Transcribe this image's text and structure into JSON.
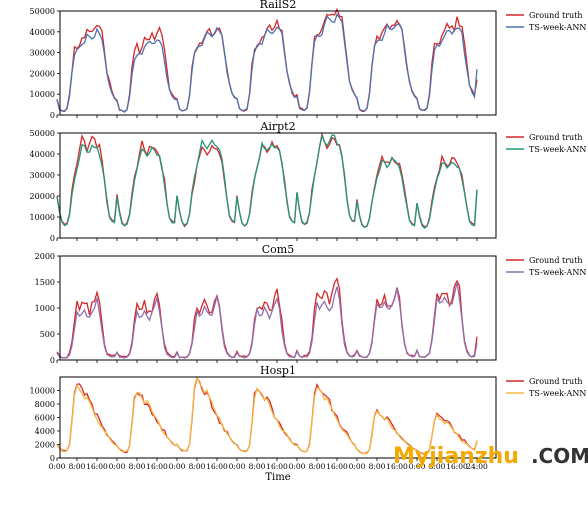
{
  "xlabel": "Time",
  "x_tick_labels": [
    "0:00",
    "8:00",
    "16:00",
    "0:00",
    "8:00",
    "16:00",
    "0:00",
    "8:00",
    "16:00",
    "0:00",
    "8:00",
    "16:00",
    "0:00",
    "8:00",
    "16:00",
    "0:00",
    "8:00",
    "16:00",
    "0:00",
    "8:00",
    "16:00",
    "24:00"
  ],
  "watermark": {
    "main": "Myjianzhu",
    "suffix": ".COM"
  },
  "chart_data": [
    {
      "type": "line",
      "title": "RailS2",
      "ylim": [
        0,
        50000
      ],
      "yticks": [
        0,
        10000,
        20000,
        30000,
        40000,
        50000
      ],
      "legend_position": "outside-right",
      "series": [
        {
          "name": "Ground truth",
          "color": "#d62728"
        },
        {
          "name": "TS-week-ANN",
          "color": "#4c72b0"
        }
      ],
      "daily_profile": {
        "hours": [
          0,
          1,
          2,
          3,
          4,
          5,
          6,
          7,
          8,
          9,
          10,
          11,
          12,
          13,
          14,
          15,
          16,
          17,
          18,
          19,
          20,
          21,
          22,
          23,
          24
        ],
        "fraction": [
          0.18,
          0.07,
          0.05,
          0.05,
          0.07,
          0.22,
          0.52,
          0.72,
          0.77,
          0.79,
          0.81,
          0.87,
          0.95,
          0.93,
          0.91,
          0.93,
          0.99,
          0.97,
          0.9,
          0.7,
          0.5,
          0.35,
          0.25,
          0.2,
          0.18
        ]
      },
      "day_peaks_truth": [
        44000,
        41000,
        43000,
        44500,
        51000,
        46500,
        46000
      ],
      "day_peaks_pred": [
        41000,
        37500,
        42000,
        43000,
        49000,
        45000,
        43000
      ],
      "day_noise_truth": [
        2500,
        3000,
        1500,
        2000,
        2500,
        2500,
        2500
      ],
      "day_noise_pred": [
        1000,
        1200,
        800,
        1000,
        1200,
        1000,
        1000
      ],
      "end_value_truth": 17000,
      "end_value_pred": 22000
    },
    {
      "type": "line",
      "title": "Airpt2",
      "ylim": [
        0,
        50000
      ],
      "yticks": [
        0,
        10000,
        20000,
        30000,
        40000,
        50000
      ],
      "legend_position": "outside-right",
      "series": [
        {
          "name": "Ground truth",
          "color": "#d62728"
        },
        {
          "name": "TS-week-ANN",
          "color": "#22967a"
        }
      ],
      "daily_profile": {
        "hours": [
          0,
          1,
          2,
          3,
          4,
          5,
          6,
          7,
          8,
          9,
          10,
          11,
          12,
          13,
          14,
          15,
          16,
          17,
          18,
          19,
          20,
          21,
          22,
          23,
          24
        ],
        "fraction": [
          0.44,
          0.27,
          0.16,
          0.13,
          0.15,
          0.24,
          0.44,
          0.62,
          0.74,
          0.85,
          0.98,
          0.94,
          0.9,
          0.92,
          0.99,
          0.95,
          0.92,
          0.88,
          0.76,
          0.58,
          0.38,
          0.22,
          0.17,
          0.16,
          0.15
        ]
      },
      "day_peaks_truth": [
        48000,
        45500,
        46000,
        47000,
        49000,
        39000,
        39000
      ],
      "day_peaks_pred": [
        46000,
        44000,
        48000,
        46000,
        50000,
        38000,
        37000
      ],
      "day_noise_truth": [
        2500,
        2000,
        2000,
        2000,
        2000,
        1500,
        1500
      ],
      "day_noise_pred": [
        1500,
        1000,
        1200,
        1000,
        1500,
        1000,
        1000
      ],
      "end_value_truth": 23000,
      "end_value_pred": 23000
    },
    {
      "type": "line",
      "title": "Com5",
      "ylim": [
        0,
        2000
      ],
      "yticks": [
        0,
        500,
        1000,
        1500,
        2000
      ],
      "legend_position": "outside-right",
      "series": [
        {
          "name": "Ground truth",
          "color": "#d62728"
        },
        {
          "name": "TS-week-ANN",
          "color": "#8e6fb0"
        }
      ],
      "daily_profile": {
        "hours": [
          0,
          1,
          2,
          3,
          4,
          5,
          6,
          7,
          8,
          9,
          10,
          11,
          12,
          13,
          14,
          15,
          16,
          17,
          18,
          19,
          20,
          21,
          22,
          23,
          24
        ],
        "fraction": [
          0.12,
          0.05,
          0.04,
          0.04,
          0.05,
          0.09,
          0.25,
          0.55,
          0.78,
          0.72,
          0.76,
          0.84,
          0.74,
          0.7,
          0.76,
          0.88,
          1.0,
          0.82,
          0.5,
          0.22,
          0.1,
          0.06,
          0.05,
          0.05,
          0.05
        ]
      },
      "day_peaks_truth": [
        1380,
        1300,
        1330,
        1360,
        1650,
        1440,
        1620
      ],
      "day_peaks_pred": [
        1150,
        1150,
        1200,
        1200,
        1380,
        1350,
        1480
      ],
      "day_noise_truth": [
        100,
        100,
        100,
        100,
        100,
        80,
        100
      ],
      "day_noise_pred": [
        50,
        50,
        50,
        50,
        50,
        50,
        50
      ],
      "end_value_truth": 450,
      "end_value_pred": 330
    },
    {
      "type": "line",
      "title": "Hosp1",
      "ylim": [
        0,
        12000
      ],
      "yticks": [
        0,
        2000,
        4000,
        6000,
        8000,
        10000
      ],
      "legend_position": "outside-right",
      "series": [
        {
          "name": "Ground truth",
          "color": "#d62728"
        },
        {
          "name": "TS-week-ANN",
          "color": "#f5b942"
        }
      ],
      "daily_profile": {
        "hours": [
          0,
          1,
          2,
          3,
          4,
          5,
          6,
          7,
          8,
          9,
          10,
          11,
          12,
          13,
          14,
          15,
          16,
          17,
          18,
          19,
          20,
          21,
          22,
          23,
          24
        ],
        "fraction": [
          0.18,
          0.13,
          0.1,
          0.09,
          0.1,
          0.18,
          0.5,
          0.88,
          1.0,
          0.95,
          0.9,
          0.83,
          0.84,
          0.78,
          0.68,
          0.6,
          0.55,
          0.48,
          0.42,
          0.38,
          0.32,
          0.27,
          0.22,
          0.19,
          0.17
        ]
      },
      "day_peaks_truth": [
        11200,
        9800,
        11500,
        10500,
        10800,
        7000,
        6500
      ],
      "day_peaks_pred": [
        10800,
        10000,
        11800,
        10200,
        10500,
        6800,
        6200
      ],
      "day_noise_truth": [
        400,
        500,
        400,
        400,
        400,
        250,
        250
      ],
      "day_noise_pred": [
        250,
        300,
        250,
        250,
        250,
        200,
        200
      ],
      "end_value_truth": 2400,
      "end_value_pred": 2600
    }
  ]
}
